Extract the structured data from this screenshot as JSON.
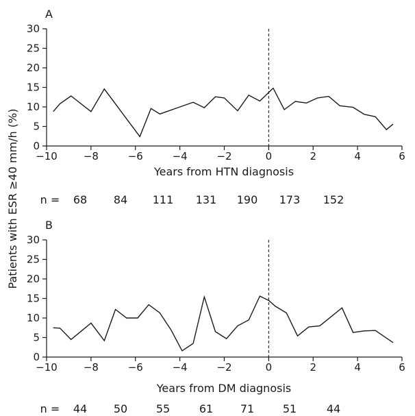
{
  "y_axis_title": "Patients with ESR ≥40 mm/h (%)",
  "n_prefix": "n =",
  "chart_data": [
    {
      "type": "line",
      "panel_label": "A",
      "xlabel": "Years from HTN diagnosis",
      "xlim": [
        -10,
        6
      ],
      "ylim": [
        0,
        30
      ],
      "x_ticks": [
        -10,
        -8,
        -6,
        -4,
        -2,
        0,
        2,
        4,
        6
      ],
      "y_ticks": [
        0,
        5,
        10,
        15,
        20,
        25,
        30
      ],
      "reference_line_x": 0,
      "x": [
        -9.7,
        -9.4,
        -8.9,
        -8.0,
        -7.4,
        -5.8,
        -5.3,
        -4.9,
        -3.4,
        -2.9,
        -2.4,
        -2.0,
        -1.4,
        -0.9,
        -0.4,
        0.2,
        0.7,
        1.2,
        1.7,
        2.2,
        2.7,
        3.2,
        3.8,
        4.3,
        4.8,
        5.3,
        5.6
      ],
      "y": [
        8.8,
        10.8,
        12.8,
        8.8,
        14.6,
        2.4,
        9.6,
        8.2,
        11.2,
        9.8,
        12.6,
        12.3,
        9.0,
        13.0,
        11.5,
        14.8,
        9.3,
        11.4,
        11.0,
        12.3,
        12.7,
        10.3,
        9.9,
        8.1,
        7.5,
        4.2,
        5.6
      ],
      "n_values": [
        "68",
        "84",
        "111",
        "131",
        "190",
        "173",
        "152"
      ]
    },
    {
      "type": "line",
      "panel_label": "B",
      "xlabel": "Years from DM diagnosis",
      "xlim": [
        -10,
        6
      ],
      "ylim": [
        0,
        30
      ],
      "x_ticks": [
        -10,
        -8,
        -6,
        -4,
        -2,
        0,
        2,
        4,
        6
      ],
      "y_ticks": [
        0,
        5,
        10,
        15,
        20,
        25,
        30
      ],
      "reference_line_x": 0,
      "x": [
        -9.7,
        -9.4,
        -8.9,
        -8.0,
        -7.4,
        -6.9,
        -6.4,
        -5.9,
        -5.4,
        -4.9,
        -4.4,
        -3.9,
        -3.4,
        -2.9,
        -2.4,
        -1.9,
        -1.4,
        -0.9,
        -0.4,
        0.0,
        0.3,
        0.8,
        1.3,
        1.8,
        2.3,
        3.3,
        3.8,
        4.3,
        4.8,
        5.6
      ],
      "y": [
        7.5,
        7.4,
        4.5,
        8.7,
        4.2,
        12.2,
        10.0,
        10.0,
        13.4,
        11.3,
        7.0,
        1.6,
        3.5,
        15.4,
        6.5,
        4.7,
        8.0,
        9.5,
        15.6,
        14.5,
        13.0,
        11.3,
        5.4,
        7.7,
        8.0,
        12.6,
        6.3,
        6.7,
        6.8,
        3.7
      ],
      "n_values": [
        "44",
        "50",
        "55",
        "61",
        "71",
        "51",
        "44"
      ]
    }
  ]
}
